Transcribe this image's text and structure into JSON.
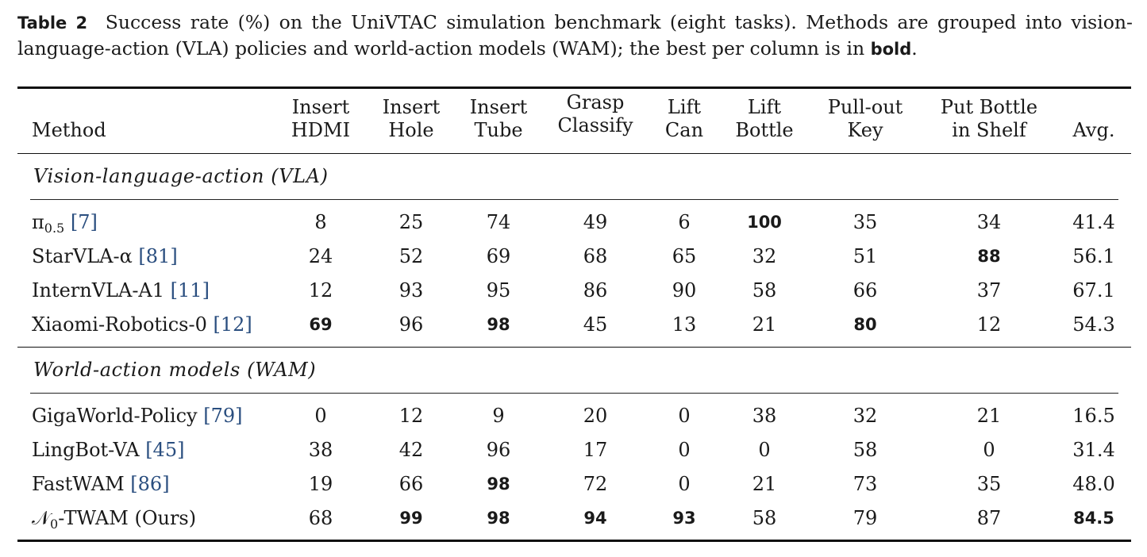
{
  "caption": {
    "label": "Table 2",
    "text_before": "Success rate (%) on the UniVTAC simulation benchmark (eight tasks). Methods are grouped into vision-language-action (VLA) policies and world-action models (WAM); the best per column is in",
    "bold_word": "bold",
    "text_after": "."
  },
  "table": {
    "columns": [
      {
        "line1": "Method",
        "line2": ""
      },
      {
        "line1": "Insert",
        "line2": "HDMI"
      },
      {
        "line1": "Insert",
        "line2": "Hole"
      },
      {
        "line1": "Insert",
        "line2": "Tube"
      },
      {
        "line1": "Grasp",
        "line2": "Classify"
      },
      {
        "line1": "Lift",
        "line2": "Can"
      },
      {
        "line1": "Lift",
        "line2": "Bottle"
      },
      {
        "line1": "Pull-out",
        "line2": "Key"
      },
      {
        "line1": "Put Bottle",
        "line2": "in Shelf"
      },
      {
        "line1": "Avg.",
        "line2": ""
      }
    ],
    "groups": [
      {
        "title": "Vision-language-action (VLA)",
        "rows": [
          {
            "method": "π",
            "method_sub": "0.5",
            "ref": "[7]",
            "values": [
              "8",
              "25",
              "74",
              "49",
              "6",
              "100",
              "35",
              "34",
              "41.4"
            ],
            "bold": [
              false,
              false,
              false,
              false,
              false,
              true,
              false,
              false,
              false
            ]
          },
          {
            "method": "StarVLA-α",
            "method_sub": "",
            "ref": "[81]",
            "values": [
              "24",
              "52",
              "69",
              "68",
              "65",
              "32",
              "51",
              "88",
              "56.1"
            ],
            "bold": [
              false,
              false,
              false,
              false,
              false,
              false,
              false,
              true,
              false
            ]
          },
          {
            "method": "InternVLA-A1",
            "method_sub": "",
            "ref": "[11]",
            "values": [
              "12",
              "93",
              "95",
              "86",
              "90",
              "58",
              "66",
              "37",
              "67.1"
            ],
            "bold": [
              false,
              false,
              false,
              false,
              false,
              false,
              false,
              false,
              false
            ]
          },
          {
            "method": "Xiaomi-Robotics-0",
            "method_sub": "",
            "ref": "[12]",
            "values": [
              "69",
              "96",
              "98",
              "45",
              "13",
              "21",
              "80",
              "12",
              "54.3"
            ],
            "bold": [
              true,
              false,
              true,
              false,
              false,
              false,
              true,
              false,
              false
            ]
          }
        ]
      },
      {
        "title": "World-action models (WAM)",
        "rows": [
          {
            "method": "GigaWorld-Policy",
            "method_sub": "",
            "ref": "[79]",
            "values": [
              "0",
              "12",
              "9",
              "20",
              "0",
              "38",
              "32",
              "21",
              "16.5"
            ],
            "bold": [
              false,
              false,
              false,
              false,
              false,
              false,
              false,
              false,
              false
            ]
          },
          {
            "method": "LingBot-VA",
            "method_sub": "",
            "ref": "[45]",
            "values": [
              "38",
              "42",
              "96",
              "17",
              "0",
              "0",
              "58",
              "0",
              "31.4"
            ],
            "bold": [
              false,
              false,
              false,
              false,
              false,
              false,
              false,
              false,
              false
            ]
          },
          {
            "method": "FastWAM",
            "method_sub": "",
            "ref": "[86]",
            "values": [
              "19",
              "66",
              "98",
              "72",
              "0",
              "21",
              "73",
              "35",
              "48.0"
            ],
            "bold": [
              false,
              false,
              true,
              false,
              false,
              false,
              false,
              false,
              false
            ]
          },
          {
            "method": "𝒩",
            "method_sub": "0",
            "method_suffix": "-TWAM (Ours)",
            "ref": "",
            "values": [
              "68",
              "99",
              "98",
              "94",
              "93",
              "58",
              "79",
              "87",
              "84.5"
            ],
            "bold": [
              false,
              true,
              true,
              true,
              true,
              false,
              false,
              false,
              true
            ]
          }
        ]
      }
    ]
  }
}
